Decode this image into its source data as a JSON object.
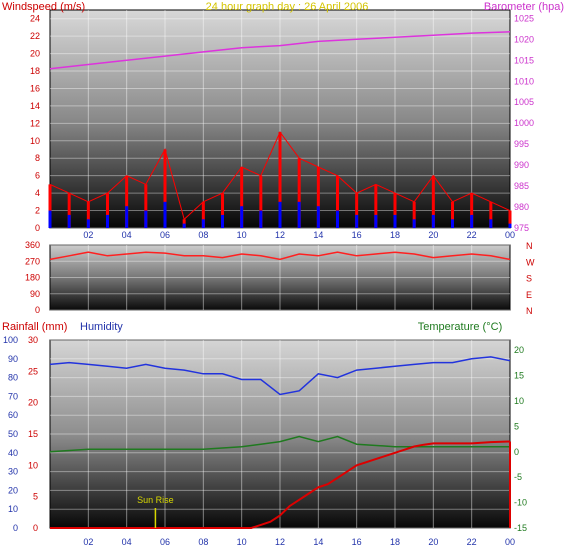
{
  "colors": {
    "wind_gust": "#ff0000",
    "wind_avg": "#0000ff",
    "barometer": "#dd33dd",
    "direction": "#ff2020",
    "humidity": "#2233dd",
    "temperature": "#1f7a1f",
    "rainfall": "#dd0000",
    "sunrise": "#d8d800",
    "title": "#d4c400",
    "left_axis_text": "#cc0000",
    "baro_axis_text": "#cc33cc"
  },
  "header": {
    "title": "24 hour graph day : 26 April 2006"
  },
  "chart_data": [
    {
      "type": "line",
      "title": "24 hour graph day : 26 April 2006",
      "ylabel": "Windspeed (m/s)",
      "ylabel_right": "Barometer (hpa)",
      "ylim": [
        0,
        25
      ],
      "ylim_right": [
        975,
        1027
      ],
      "yticks": [
        "0",
        "2",
        "4",
        "6",
        "8",
        "10",
        "12",
        "14",
        "16",
        "18",
        "20",
        "22",
        "24"
      ],
      "yticks_right": [
        "975",
        "980",
        "985",
        "990",
        "995",
        "1000",
        "1005",
        "1010",
        "1015",
        "1020",
        "1025"
      ],
      "xlim": [
        0,
        24
      ],
      "xticks": [
        "02",
        "04",
        "06",
        "08",
        "10",
        "12",
        "14",
        "16",
        "18",
        "20",
        "22",
        "00"
      ],
      "grid": true,
      "series": [
        {
          "name": "Barometer",
          "axis": "right",
          "x": [
            0,
            2,
            4,
            6,
            8,
            10,
            12,
            14,
            16,
            18,
            20,
            22,
            24
          ],
          "values": [
            1013,
            1014,
            1015,
            1016,
            1017,
            1018,
            1018.5,
            1019.5,
            1020,
            1020.5,
            1021,
            1021.5,
            1021.8
          ]
        },
        {
          "name": "Windspeed gust",
          "axis": "left",
          "x": [
            0,
            1,
            2,
            3,
            4,
            5,
            6,
            7,
            8,
            9,
            10,
            11,
            12,
            13,
            14,
            15,
            16,
            17,
            18,
            19,
            20,
            21,
            22,
            23,
            24
          ],
          "values": [
            5,
            4,
            3,
            4,
            6,
            5,
            9,
            1,
            3,
            4,
            7,
            6,
            11,
            8,
            7,
            6,
            4,
            5,
            4,
            3,
            6,
            3,
            4,
            3,
            2
          ]
        },
        {
          "name": "Windspeed average",
          "axis": "left",
          "x": [
            0,
            1,
            2,
            3,
            4,
            5,
            6,
            7,
            8,
            9,
            10,
            11,
            12,
            13,
            14,
            15,
            16,
            17,
            18,
            19,
            20,
            21,
            22,
            23,
            24
          ],
          "values": [
            2,
            1.5,
            1,
            1.5,
            2.5,
            2,
            3,
            0.5,
            1,
            1.5,
            2.5,
            2,
            3,
            3,
            2.5,
            2,
            1.5,
            1.5,
            1.5,
            1,
            1.5,
            1,
            1.5,
            1,
            0.5
          ]
        }
      ]
    },
    {
      "type": "line",
      "ylabel": "",
      "ylim": [
        0,
        360
      ],
      "yticks": [
        "0",
        "90",
        "180",
        "270",
        "360"
      ],
      "yticks_right": [
        "N",
        "W",
        "S",
        "E",
        "N"
      ],
      "xlim": [
        0,
        24
      ],
      "grid": true,
      "series": [
        {
          "name": "Wind direction",
          "x": [
            0,
            1,
            2,
            3,
            4,
            5,
            6,
            7,
            8,
            9,
            10,
            11,
            12,
            13,
            14,
            15,
            16,
            17,
            18,
            19,
            20,
            21,
            22,
            23,
            24
          ],
          "values": [
            280,
            300,
            320,
            300,
            310,
            320,
            315,
            300,
            300,
            290,
            310,
            300,
            280,
            310,
            300,
            320,
            300,
            310,
            320,
            310,
            290,
            300,
            310,
            300,
            280
          ]
        }
      ]
    },
    {
      "type": "line",
      "ylabel": "Rainfall (mm)",
      "ylabel_humidity": "Humidity",
      "ylabel_right": "Temperature (°C)",
      "ylim": [
        0,
        30
      ],
      "ylim_humidity": [
        0,
        100
      ],
      "ylim_right": [
        -15,
        22
      ],
      "yticks": [
        "0",
        "5",
        "10",
        "15",
        "20",
        "25",
        "30"
      ],
      "yticks_humidity": [
        "0",
        "10",
        "20",
        "30",
        "40",
        "50",
        "60",
        "70",
        "80",
        "90",
        "100"
      ],
      "yticks_right": [
        "-15",
        "-10",
        "-5",
        "0",
        "5",
        "10",
        "15",
        "20"
      ],
      "xlim": [
        0,
        24
      ],
      "xticks": [
        "02",
        "04",
        "06",
        "08",
        "10",
        "12",
        "14",
        "16",
        "18",
        "20",
        "22",
        "00"
      ],
      "grid": true,
      "annotations": [
        {
          "text": "Sun Rise",
          "x": 5.5
        }
      ],
      "series": [
        {
          "name": "Humidity",
          "axis": "humidity",
          "x": [
            0,
            1,
            2,
            3,
            4,
            5,
            6,
            7,
            8,
            9,
            10,
            11,
            12,
            13,
            14,
            15,
            16,
            17,
            18,
            19,
            20,
            21,
            22,
            23,
            24
          ],
          "values": [
            87,
            88,
            87,
            86,
            85,
            87,
            85,
            84,
            82,
            82,
            79,
            79,
            71,
            73,
            82,
            80,
            84,
            85,
            86,
            87,
            88,
            88,
            90,
            91,
            89
          ]
        },
        {
          "name": "Temperature",
          "axis": "right",
          "x": [
            0,
            2,
            4,
            6,
            8,
            10,
            11,
            12,
            13,
            14,
            15,
            16,
            18,
            20,
            22,
            24
          ],
          "values": [
            0,
            0.5,
            0.5,
            0.5,
            0.5,
            1,
            1.5,
            2,
            3,
            2,
            3,
            1.5,
            1,
            1,
            1,
            1
          ]
        },
        {
          "name": "Rainfall",
          "axis": "left",
          "x": [
            0,
            10.5,
            11,
            11.5,
            12,
            12.5,
            13,
            13.5,
            14,
            14.5,
            15,
            15.5,
            16,
            16.5,
            17,
            17.5,
            18,
            18.5,
            19,
            19.5,
            20,
            21,
            22,
            23,
            24
          ],
          "values": [
            0,
            0,
            0.5,
            1,
            2,
            3.5,
            4.5,
            5.5,
            6.5,
            7,
            8,
            9,
            10,
            10.5,
            11,
            11.5,
            12,
            12.5,
            13,
            13.3,
            13.5,
            13.5,
            13.5,
            13.7,
            13.8
          ]
        }
      ]
    }
  ]
}
